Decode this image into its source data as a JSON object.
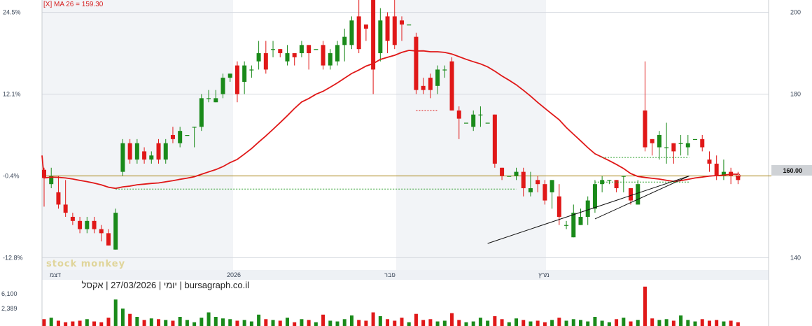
{
  "indicator_label": "[X] MA 26 = 159.30",
  "watermark": "stock monkey",
  "info_line": "יומי | 27/03/2026 | אקסל | bursagraph.co.il",
  "price_tag": "160.00",
  "colors": {
    "up": "#1a8a1a",
    "down": "#e01818",
    "ma": "#e01818",
    "bg_shade": "#f2f4f7",
    "level": "#a07a00"
  },
  "chart_data": {
    "type": "candlestick",
    "right_axis": {
      "ticks": [
        140,
        160,
        180,
        200
      ],
      "labels": [
        "140",
        "",
        "180",
        "200"
      ],
      "range": [
        137,
        203
      ]
    },
    "left_axis_percent": [
      "24.5%",
      "12.1%",
      "-0.4%",
      "-12.8%"
    ],
    "x_labels": [
      "דצמ",
      "2026",
      "פבר",
      "מרץ"
    ],
    "volume_axis": [
      "6,100",
      "2,389"
    ],
    "level": 160.0,
    "candles": [
      [
        161.5,
        159.5,
        162,
        152.5
      ],
      [
        158,
        160,
        162,
        157
      ],
      [
        156,
        153,
        160,
        152
      ],
      [
        153,
        151,
        159,
        150
      ],
      [
        150,
        149,
        151,
        148
      ],
      [
        149,
        147,
        150,
        146
      ],
      [
        147,
        149,
        150,
        146
      ],
      [
        149,
        147,
        150,
        146
      ],
      [
        147,
        146,
        148,
        144
      ],
      [
        146,
        143,
        147,
        143
      ],
      [
        142,
        151,
        152,
        142
      ],
      [
        161,
        168,
        169,
        160
      ],
      [
        168,
        164,
        169,
        163
      ],
      [
        164,
        168,
        169,
        163
      ],
      [
        166,
        164,
        167,
        163
      ],
      [
        164,
        165,
        166,
        163
      ],
      [
        168,
        164,
        169,
        163
      ],
      [
        164,
        168,
        169,
        163
      ],
      [
        170,
        169,
        172,
        168
      ],
      [
        168,
        171,
        172,
        167
      ],
      [
        170,
        170,
        170,
        170
      ],
      [
        172,
        172,
        172,
        167
      ],
      [
        172,
        179,
        180,
        171
      ],
      [
        179,
        179,
        181,
        178
      ],
      [
        178,
        179,
        181,
        178
      ],
      [
        180,
        184,
        185,
        179
      ],
      [
        184,
        185,
        185,
        183
      ],
      [
        187,
        180,
        188,
        178
      ],
      [
        183,
        187,
        188,
        180
      ],
      [
        186,
        186,
        187,
        184
      ],
      [
        188,
        190,
        193,
        186
      ],
      [
        190,
        186,
        193,
        185
      ],
      [
        191,
        191,
        193,
        189
      ],
      [
        191,
        190,
        191,
        189
      ],
      [
        188,
        190,
        192,
        187
      ],
      [
        190,
        189,
        190,
        187
      ],
      [
        190,
        192,
        193,
        189
      ],
      [
        192,
        190,
        192,
        186
      ],
      [
        191,
        191,
        191,
        191
      ],
      [
        192,
        187,
        193,
        186
      ],
      [
        187,
        190,
        191,
        186
      ],
      [
        188,
        192,
        193,
        187
      ],
      [
        192,
        194,
        196,
        188
      ],
      [
        192,
        198,
        199,
        191
      ],
      [
        199,
        191,
        204,
        190
      ],
      [
        197,
        196,
        197,
        193
      ],
      [
        203,
        186,
        203,
        180
      ],
      [
        190,
        198,
        201,
        188
      ],
      [
        199,
        193,
        200,
        190
      ],
      [
        199,
        192,
        203,
        191
      ],
      [
        198,
        197,
        199,
        193
      ],
      [
        197,
        197,
        197,
        197
      ],
      [
        194,
        181,
        195,
        180
      ],
      [
        182,
        181,
        184,
        180
      ],
      [
        184,
        181,
        185,
        179
      ],
      [
        182,
        186,
        187,
        180
      ],
      [
        186,
        186,
        187,
        184
      ],
      [
        188,
        176,
        189,
        176
      ],
      [
        176,
        174,
        177,
        169
      ],
      [
        173,
        173,
        173,
        173
      ],
      [
        172,
        175,
        176,
        171
      ],
      [
        175,
        175,
        177,
        172
      ],
      [
        173,
        173,
        173,
        173
      ],
      [
        175,
        163,
        175,
        162
      ],
      [
        162,
        160,
        162,
        159
      ],
      [
        160,
        160,
        160,
        160
      ],
      [
        160,
        161,
        162,
        159
      ],
      [
        161,
        157,
        162,
        155
      ],
      [
        156,
        157,
        161,
        155
      ],
      [
        159,
        158,
        160,
        156
      ],
      [
        158,
        154,
        159,
        153
      ],
      [
        156,
        159,
        159,
        152
      ],
      [
        155,
        150,
        158,
        148
      ],
      [
        148,
        148,
        149,
        147
      ],
      [
        145,
        151,
        153,
        145
      ],
      [
        148,
        150,
        152,
        148
      ],
      [
        150,
        154,
        155,
        148
      ],
      [
        152,
        158,
        159,
        151
      ],
      [
        158,
        159,
        160,
        156
      ],
      [
        159,
        159,
        159,
        158
      ],
      [
        159,
        157,
        159,
        156
      ],
      [
        160,
        160,
        160,
        156
      ],
      [
        157,
        154,
        157,
        153
      ],
      [
        153,
        158,
        159,
        153
      ],
      [
        176,
        167,
        188,
        166
      ],
      [
        169,
        168,
        169,
        165
      ],
      [
        167,
        170,
        171,
        164
      ],
      [
        167,
        167,
        173,
        163
      ],
      [
        168,
        166,
        168,
        163
      ],
      [
        168,
        168,
        170,
        165
      ],
      [
        167,
        168,
        170,
        165
      ],
      [
        169,
        169,
        169,
        169
      ],
      [
        169,
        167,
        170,
        166
      ],
      [
        164,
        163,
        166,
        161
      ],
      [
        163,
        160,
        165,
        159
      ],
      [
        160,
        161,
        164,
        159
      ],
      [
        161,
        160,
        162,
        158
      ],
      [
        160,
        159,
        161,
        158
      ]
    ],
    "volume": [
      900,
      1100,
      700,
      500,
      600,
      700,
      900,
      600,
      500,
      1100,
      3500,
      2300,
      1600,
      1200,
      800,
      1000,
      900,
      800,
      700,
      1200,
      800,
      500,
      1100,
      1800,
      1200,
      1000,
      900,
      700,
      800,
      600,
      1500,
      900,
      800,
      700,
      1100,
      500,
      900,
      800,
      500,
      1500,
      700,
      600,
      900,
      1400,
      800,
      700,
      1800,
      1300,
      900,
      700,
      1100,
      500,
      1600,
      800,
      900,
      600,
      700,
      1700,
      800,
      500,
      600,
      1100,
      700,
      1300,
      900,
      500,
      1000,
      800,
      600,
      700,
      500,
      800,
      1100,
      700,
      900,
      800,
      600,
      1200,
      700,
      500,
      900,
      1100,
      600,
      800,
      5200,
      1000,
      800,
      900,
      700,
      1400,
      800,
      600,
      900,
      700,
      800,
      600,
      700,
      500
    ]
  }
}
